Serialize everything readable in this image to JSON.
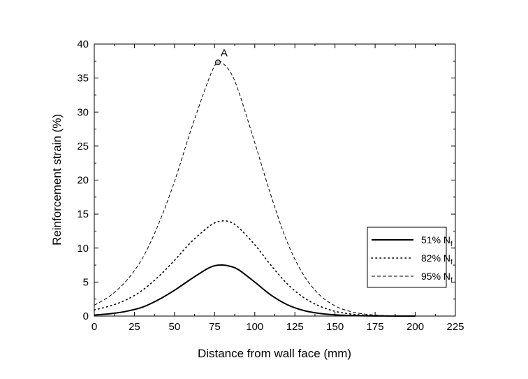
{
  "chart_data": {
    "type": "line",
    "xlabel": "Distance from wall face (mm)",
    "ylabel": "Reinforcement strain (%)",
    "xlim": [
      0,
      225
    ],
    "ylim": [
      0,
      40
    ],
    "xticks": [
      0,
      25,
      50,
      75,
      100,
      125,
      150,
      175,
      200,
      225
    ],
    "yticks": [
      0,
      5,
      10,
      15,
      20,
      25,
      30,
      35,
      40
    ],
    "grid": false,
    "legend_position": "right",
    "series": [
      {
        "name": "51% N",
        "name_subscript": "f",
        "style": "solid",
        "x": [
          0,
          10,
          20,
          30,
          40,
          50,
          60,
          70,
          75,
          80,
          85,
          90,
          100,
          110,
          120,
          130,
          140,
          150,
          160,
          170,
          180,
          190,
          200
        ],
        "y": [
          0.15,
          0.35,
          0.7,
          1.3,
          2.4,
          3.8,
          5.4,
          6.9,
          7.4,
          7.5,
          7.3,
          6.8,
          5.0,
          3.1,
          1.7,
          0.85,
          0.4,
          0.18,
          0.08,
          0.03,
          0.01,
          0.0,
          0.0
        ]
      },
      {
        "name": "82% N",
        "name_subscript": "f",
        "style": "dotted",
        "x": [
          0,
          10,
          20,
          30,
          40,
          50,
          60,
          70,
          75,
          80,
          85,
          90,
          100,
          110,
          120,
          130,
          140,
          150,
          160,
          170,
          180,
          190,
          200
        ],
        "y": [
          0.9,
          1.5,
          2.4,
          3.8,
          5.8,
          8.2,
          10.8,
          12.9,
          13.7,
          14.0,
          13.8,
          13.0,
          10.5,
          7.5,
          4.8,
          2.8,
          1.5,
          0.7,
          0.3,
          0.12,
          0.04,
          0.01,
          0.0
        ]
      },
      {
        "name": "95% N",
        "name_subscript": "f",
        "style": "dashed",
        "x": [
          0,
          10,
          20,
          30,
          40,
          50,
          60,
          70,
          75,
          78,
          80,
          85,
          90,
          100,
          110,
          120,
          130,
          140,
          150,
          160,
          170,
          180,
          190,
          200
        ],
        "y": [
          1.6,
          3.0,
          5.2,
          8.5,
          13.5,
          19.8,
          27.2,
          34.0,
          36.8,
          37.4,
          37.2,
          35.8,
          33.0,
          25.5,
          17.8,
          11.0,
          6.2,
          3.2,
          1.5,
          0.65,
          0.25,
          0.08,
          0.02,
          0.0
        ]
      }
    ],
    "annotations": [
      {
        "label": "A",
        "x": 77,
        "y": 37.3
      }
    ]
  }
}
